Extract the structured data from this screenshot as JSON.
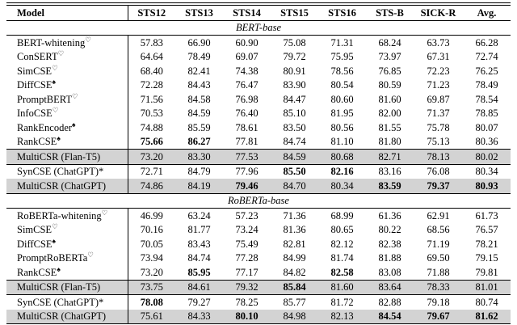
{
  "table": {
    "columns": [
      "Model",
      "STS12",
      "STS13",
      "STS14",
      "STS15",
      "STS16",
      "STS-B",
      "SICK-R",
      "Avg."
    ],
    "highlight_color": "#d3d3d3",
    "sections": [
      {
        "title": "BERT-base",
        "groups": [
          {
            "rows": [
              {
                "model": "BERT-whitening",
                "sup": "♡",
                "values": [
                  "57.83",
                  "66.90",
                  "60.90",
                  "75.08",
                  "71.31",
                  "68.24",
                  "63.73",
                  "66.28"
                ],
                "bold_cols": [],
                "highlight": false
              },
              {
                "model": "ConSERT",
                "sup": "♡",
                "values": [
                  "64.64",
                  "78.49",
                  "69.07",
                  "79.72",
                  "75.95",
                  "73.97",
                  "67.31",
                  "72.74"
                ],
                "bold_cols": [],
                "highlight": false
              },
              {
                "model": "SimCSE",
                "sup": "♡",
                "values": [
                  "68.40",
                  "82.41",
                  "74.38",
                  "80.91",
                  "78.56",
                  "76.85",
                  "72.23",
                  "76.25"
                ],
                "bold_cols": [],
                "highlight": false
              },
              {
                "model": "DiffCSE",
                "sup": "♠",
                "values": [
                  "72.28",
                  "84.43",
                  "76.47",
                  "83.90",
                  "80.54",
                  "80.59",
                  "71.23",
                  "78.49"
                ],
                "bold_cols": [],
                "highlight": false
              },
              {
                "model": "PromptBERT",
                "sup": "♡",
                "values": [
                  "71.56",
                  "84.58",
                  "76.98",
                  "84.47",
                  "80.60",
                  "81.60",
                  "69.87",
                  "78.54"
                ],
                "bold_cols": [],
                "highlight": false
              },
              {
                "model": "InfoCSE",
                "sup": "♡",
                "values": [
                  "70.53",
                  "84.59",
                  "76.40",
                  "85.10",
                  "81.95",
                  "82.00",
                  "71.37",
                  "78.85"
                ],
                "bold_cols": [],
                "highlight": false
              },
              {
                "model": "RankEncoder",
                "sup": "♠",
                "values": [
                  "74.88",
                  "85.59",
                  "78.61",
                  "83.50",
                  "80.56",
                  "81.55",
                  "75.78",
                  "80.07"
                ],
                "bold_cols": [],
                "highlight": false
              },
              {
                "model": "RankCSE",
                "sup": "♠",
                "values": [
                  "75.66",
                  "86.27",
                  "77.81",
                  "84.74",
                  "81.10",
                  "81.80",
                  "75.13",
                  "80.36"
                ],
                "bold_cols": [
                  0,
                  1
                ],
                "highlight": false
              }
            ]
          },
          {
            "rows": [
              {
                "model": "MultiCSR (Flan-T5)",
                "sup": "",
                "values": [
                  "73.20",
                  "83.30",
                  "77.53",
                  "84.59",
                  "80.68",
                  "82.71",
                  "78.13",
                  "80.02"
                ],
                "bold_cols": [],
                "highlight": true
              }
            ]
          },
          {
            "rows": [
              {
                "model": "SynCSE (ChatGPT)*",
                "sup": "",
                "values": [
                  "72.71",
                  "84.79",
                  "77.96",
                  "85.50",
                  "82.16",
                  "83.16",
                  "76.08",
                  "80.34"
                ],
                "bold_cols": [
                  3,
                  4
                ],
                "highlight": false
              },
              {
                "model": "MultiCSR (ChatGPT)",
                "sup": "",
                "values": [
                  "74.86",
                  "84.19",
                  "79.46",
                  "84.70",
                  "80.34",
                  "83.59",
                  "79.37",
                  "80.93"
                ],
                "bold_cols": [
                  2,
                  5,
                  6,
                  7
                ],
                "highlight": true
              }
            ]
          }
        ]
      },
      {
        "title": "RoBERTa-base",
        "groups": [
          {
            "rows": [
              {
                "model": "RoBERTa-whitening",
                "sup": "♡",
                "values": [
                  "46.99",
                  "63.24",
                  "57.23",
                  "71.36",
                  "68.99",
                  "61.36",
                  "62.91",
                  "61.73"
                ],
                "bold_cols": [],
                "highlight": false
              },
              {
                "model": "SimCSE",
                "sup": "♡",
                "values": [
                  "70.16",
                  "81.77",
                  "73.24",
                  "81.36",
                  "80.65",
                  "80.22",
                  "68.56",
                  "76.57"
                ],
                "bold_cols": [],
                "highlight": false
              },
              {
                "model": "DiffCSE",
                "sup": "♠",
                "values": [
                  "70.05",
                  "83.43",
                  "75.49",
                  "82.81",
                  "82.12",
                  "82.38",
                  "71.19",
                  "78.21"
                ],
                "bold_cols": [],
                "highlight": false
              },
              {
                "model": "PromptRoBERTa",
                "sup": "♡",
                "values": [
                  "73.94",
                  "84.74",
                  "77.28",
                  "84.99",
                  "81.74",
                  "81.88",
                  "69.50",
                  "79.15"
                ],
                "bold_cols": [],
                "highlight": false
              },
              {
                "model": "RankCSE",
                "sup": "♠",
                "values": [
                  "73.20",
                  "85.95",
                  "77.17",
                  "84.82",
                  "82.58",
                  "83.08",
                  "71.88",
                  "79.81"
                ],
                "bold_cols": [
                  1,
                  4
                ],
                "highlight": false
              }
            ]
          },
          {
            "rows": [
              {
                "model": "MultiCSR (Flan-T5)",
                "sup": "",
                "values": [
                  "73.75",
                  "84.61",
                  "79.32",
                  "85.84",
                  "81.60",
                  "83.64",
                  "78.33",
                  "81.01"
                ],
                "bold_cols": [
                  3
                ],
                "highlight": true
              }
            ]
          },
          {
            "rows": [
              {
                "model": "SynCSE (ChatGPT)*",
                "sup": "",
                "values": [
                  "78.08",
                  "79.27",
                  "78.25",
                  "85.77",
                  "81.72",
                  "82.88",
                  "79.18",
                  "80.74"
                ],
                "bold_cols": [
                  0
                ],
                "highlight": false
              },
              {
                "model": "MultiCSR (ChatGPT)",
                "sup": "",
                "values": [
                  "75.61",
                  "84.33",
                  "80.10",
                  "84.98",
                  "82.13",
                  "84.54",
                  "79.67",
                  "81.62"
                ],
                "bold_cols": [
                  2,
                  5,
                  6,
                  7
                ],
                "highlight": true
              }
            ]
          }
        ]
      }
    ]
  }
}
